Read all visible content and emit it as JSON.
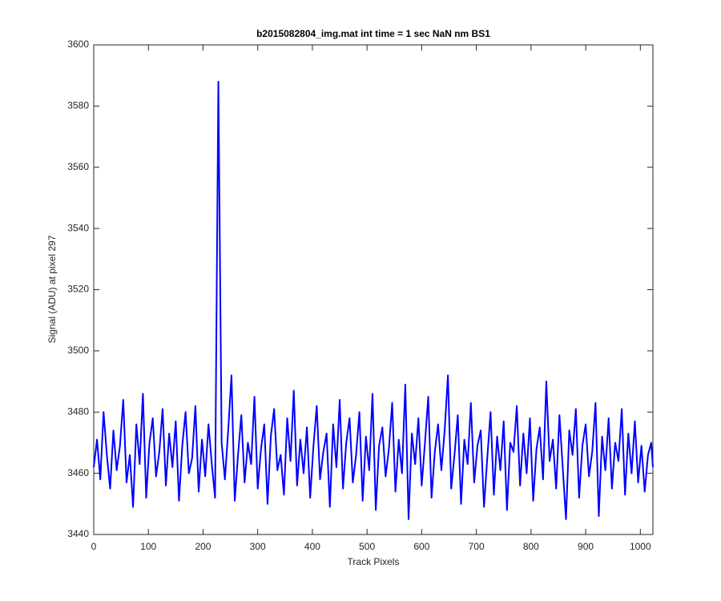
{
  "chart_data": {
    "type": "line",
    "title": "b2015082804_img.mat int time = 1 sec  NaN nm BS1",
    "x_label": "Track Pixels",
    "y_label": "Signal (ADU) at pixel 297",
    "xlim": [
      0,
      1023
    ],
    "ylim": [
      3440,
      3600
    ],
    "xticks": [
      0,
      100,
      200,
      300,
      400,
      500,
      600,
      700,
      800,
      900,
      1000
    ],
    "yticks": [
      3440,
      3460,
      3480,
      3500,
      3520,
      3540,
      3560,
      3580,
      3600
    ],
    "grid": false,
    "x": [
      0,
      6,
      12,
      18,
      24,
      30,
      36,
      42,
      48,
      54,
      60,
      66,
      72,
      78,
      84,
      90,
      96,
      102,
      108,
      114,
      120,
      126,
      132,
      138,
      144,
      150,
      156,
      162,
      168,
      174,
      180,
      186,
      192,
      198,
      204,
      210,
      216,
      222,
      228,
      234,
      240,
      246,
      252,
      258,
      264,
      270,
      276,
      282,
      288,
      294,
      300,
      306,
      312,
      318,
      324,
      330,
      336,
      342,
      348,
      354,
      360,
      366,
      372,
      378,
      384,
      390,
      396,
      402,
      408,
      414,
      420,
      426,
      432,
      438,
      444,
      450,
      456,
      462,
      468,
      474,
      480,
      486,
      492,
      498,
      504,
      510,
      516,
      522,
      528,
      534,
      540,
      546,
      552,
      558,
      564,
      570,
      576,
      582,
      588,
      594,
      600,
      606,
      612,
      618,
      624,
      630,
      636,
      642,
      648,
      654,
      660,
      666,
      672,
      678,
      684,
      690,
      696,
      702,
      708,
      714,
      720,
      726,
      732,
      738,
      744,
      750,
      756,
      762,
      768,
      774,
      780,
      786,
      792,
      798,
      804,
      810,
      816,
      822,
      828,
      834,
      840,
      846,
      852,
      858,
      864,
      870,
      876,
      882,
      888,
      894,
      900,
      906,
      912,
      918,
      924,
      930,
      936,
      942,
      948,
      954,
      960,
      966,
      972,
      978,
      984,
      990,
      996,
      1002,
      1008,
      1014,
      1020,
      1023
    ],
    "series": [
      {
        "color": "#0000ff",
        "values": [
          3462,
          3471,
          3458,
          3480,
          3466,
          3455,
          3474,
          3461,
          3469,
          3484,
          3457,
          3466,
          3449,
          3476,
          3463,
          3486,
          3452,
          3470,
          3478,
          3459,
          3467,
          3481,
          3456,
          3473,
          3462,
          3477,
          3451,
          3469,
          3480,
          3460,
          3465,
          3482,
          3454,
          3471,
          3459,
          3476,
          3463,
          3452,
          3588,
          3470,
          3458,
          3474,
          3492,
          3451,
          3466,
          3479,
          3457,
          3470,
          3463,
          3485,
          3455,
          3468,
          3476,
          3450,
          3472,
          3481,
          3461,
          3466,
          3453,
          3478,
          3464,
          3487,
          3456,
          3471,
          3460,
          3475,
          3452,
          3469,
          3482,
          3458,
          3467,
          3473,
          3449,
          3476,
          3462,
          3484,
          3455,
          3470,
          3478,
          3457,
          3466,
          3480,
          3451,
          3472,
          3461,
          3486,
          3448,
          3469,
          3475,
          3459,
          3468,
          3483,
          3454,
          3471,
          3460,
          3489,
          3445,
          3473,
          3463,
          3478,
          3456,
          3470,
          3485,
          3452,
          3467,
          3476,
          3461,
          3474,
          3492,
          3455,
          3466,
          3479,
          3450,
          3471,
          3463,
          3483,
          3457,
          3469,
          3474,
          3449,
          3465,
          3480,
          3453,
          3472,
          3461,
          3477,
          3448,
          3470,
          3467,
          3482,
          3456,
          3473,
          3460,
          3478,
          3451,
          3468,
          3475,
          3458,
          3490,
          3464,
          3471,
          3455,
          3479,
          3462,
          3445,
          3474,
          3466,
          3481,
          3452,
          3469,
          3476,
          3459,
          3467,
          3483,
          3446,
          3472,
          3461,
          3478,
          3455,
          3470,
          3464,
          3481,
          3453,
          3473,
          3460,
          3477,
          3457,
          3469,
          3454,
          3466,
          3470,
          3462
        ]
      }
    ]
  }
}
